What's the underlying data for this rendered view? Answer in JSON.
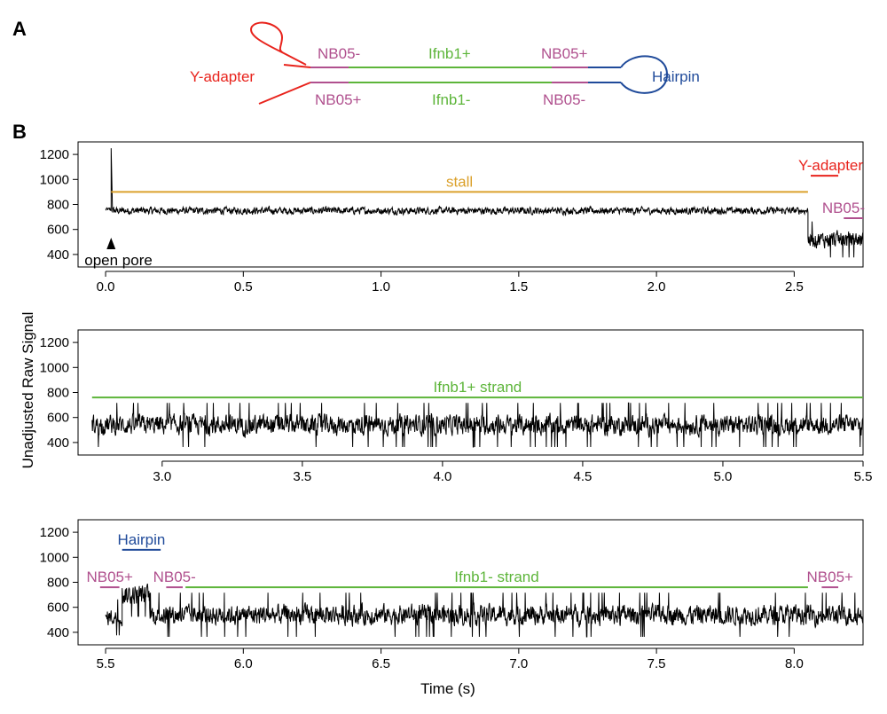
{
  "colors": {
    "red": "#e8231c",
    "magenta": "#b0508e",
    "green": "#5db53a",
    "blue": "#1f4a9a",
    "orange": "#dba12c",
    "black": "#000000"
  },
  "panel_a": {
    "letter": "A",
    "labels": {
      "y_adapter": "Y-adapter",
      "top_left": "NB05-",
      "top_mid": "Ifnb1+",
      "top_right": "NB05+",
      "bottom_left": "NB05+",
      "bottom_mid": "Ifnb1-",
      "bottom_right": "NB05-",
      "hairpin": "Hairpin"
    }
  },
  "panel_b": {
    "letter": "B",
    "ylabel": "Unadjusted Raw Signal",
    "xlabel": "Time (s)"
  },
  "chart_data": [
    {
      "type": "line",
      "xlim": [
        -0.1,
        2.75
      ],
      "ylim": [
        300,
        1300
      ],
      "x_ticks": [
        0.0,
        0.5,
        1.0,
        1.5,
        2.0,
        2.5
      ],
      "x_tick_labels": [
        "0.0",
        "0.5",
        "1.0",
        "1.5",
        "2.0",
        "2.5"
      ],
      "y_ticks": [
        400,
        600,
        800,
        1000,
        1200
      ],
      "y_tick_labels": [
        "400",
        "600",
        "800",
        "1000",
        "1200"
      ],
      "grid": false,
      "signal": {
        "x_range": [
          0.0,
          2.75
        ],
        "segments": [
          {
            "x": [
              0.0,
              0.02
            ],
            "base": 760,
            "amp": 20
          },
          {
            "x": [
              0.02,
              0.025
            ],
            "base": 1250,
            "amp": 0,
            "spike": true
          },
          {
            "x": [
              0.025,
              2.55
            ],
            "base": 750,
            "amp": 40
          },
          {
            "x": [
              2.55,
              2.75
            ],
            "base": 520,
            "amp": 90
          }
        ],
        "note_open_pore_time": 0.02
      },
      "annotations": [
        {
          "text": "stall",
          "x_start": 0.02,
          "x_end": 2.55,
          "y": 900,
          "color": "#dba12c"
        },
        {
          "text": "Y-adapter",
          "x_start": 2.56,
          "x_end": 2.66,
          "y": 1030,
          "color": "#e8231c"
        },
        {
          "text": "NB05-",
          "x_start": 2.68,
          "x_end": 2.75,
          "y": 690,
          "color": "#b0508e"
        }
      ],
      "marker": {
        "text": "open pore",
        "x": 0.02,
        "y": 300
      }
    },
    {
      "type": "line",
      "xlim": [
        2.7,
        5.5
      ],
      "ylim": [
        300,
        1300
      ],
      "x_ticks": [
        3.0,
        3.5,
        4.0,
        4.5,
        5.0,
        5.5
      ],
      "x_tick_labels": [
        "3.0",
        "3.5",
        "4.0",
        "4.5",
        "5.0",
        "5.5"
      ],
      "y_ticks": [
        400,
        600,
        800,
        1000,
        1200
      ],
      "y_tick_labels": [
        "400",
        "600",
        "800",
        "1000",
        "1200"
      ],
      "grid": false,
      "signal": {
        "x_range": [
          2.75,
          5.5
        ],
        "segments": [
          {
            "x": [
              2.75,
              5.5
            ],
            "base": 540,
            "amp": 110
          }
        ]
      },
      "annotations": [
        {
          "text": "Ifnb1+ strand",
          "x_start": 2.75,
          "x_end": 5.5,
          "y": 760,
          "color": "#5db53a"
        }
      ]
    },
    {
      "type": "line",
      "xlim": [
        5.4,
        8.25
      ],
      "ylim": [
        300,
        1300
      ],
      "x_ticks": [
        5.5,
        6.0,
        6.5,
        7.0,
        7.5,
        8.0
      ],
      "x_tick_labels": [
        "5.5",
        "6.0",
        "6.5",
        "7.0",
        "7.5",
        "8.0"
      ],
      "y_ticks": [
        400,
        600,
        800,
        1000,
        1200
      ],
      "y_tick_labels": [
        "400",
        "600",
        "800",
        "1000",
        "1200"
      ],
      "grid": false,
      "signal": {
        "x_range": [
          5.5,
          8.25
        ],
        "segments": [
          {
            "x": [
              5.5,
              5.56
            ],
            "base": 520,
            "amp": 90
          },
          {
            "x": [
              5.56,
              5.66
            ],
            "base": 700,
            "amp": 110
          },
          {
            "x": [
              5.66,
              8.25
            ],
            "base": 540,
            "amp": 110
          }
        ]
      },
      "annotations": [
        {
          "text": "Hairpin",
          "x_start": 5.56,
          "x_end": 5.7,
          "y": 1060,
          "color": "#1f4a9a"
        },
        {
          "text": "NB05+",
          "x_start": 5.48,
          "x_end": 5.55,
          "y": 760,
          "color": "#b0508e"
        },
        {
          "text": "NB05-",
          "x_start": 5.72,
          "x_end": 5.78,
          "y": 760,
          "color": "#b0508e"
        },
        {
          "text": "Ifnb1- strand",
          "x_start": 5.79,
          "x_end": 8.05,
          "y": 760,
          "color": "#5db53a"
        },
        {
          "text": "NB05+",
          "x_start": 8.1,
          "x_end": 8.16,
          "y": 760,
          "color": "#b0508e"
        }
      ]
    }
  ]
}
